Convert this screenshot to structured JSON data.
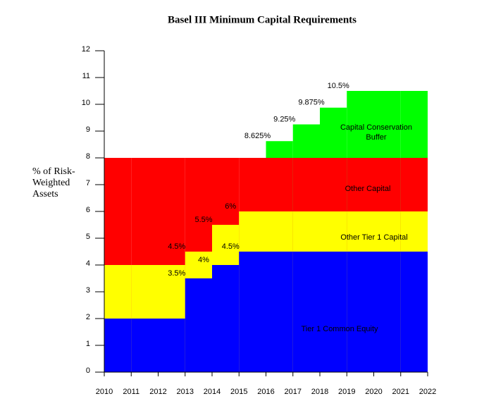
{
  "chart_data": {
    "type": "step-area",
    "title": "Basel III Minimum Capital Requirements",
    "y_label": "% of Risk-Weighted Assets",
    "x": [
      2010,
      2011,
      2012,
      2013,
      2014,
      2015,
      2016,
      2017,
      2018,
      2019,
      2020,
      2021
    ],
    "xlim": [
      2010,
      2022
    ],
    "xticks": [
      2010,
      2011,
      2012,
      2013,
      2014,
      2015,
      2016,
      2017,
      2018,
      2019,
      2020,
      2021,
      2022
    ],
    "ylim": [
      0,
      12
    ],
    "yticks": [
      0,
      1,
      2,
      3,
      4,
      5,
      6,
      7,
      8,
      9,
      10,
      11,
      12
    ],
    "stacked": false,
    "series": [
      {
        "name": "Capital Conservation Buffer",
        "color": "#00ff00",
        "values": [
          null,
          null,
          null,
          null,
          null,
          null,
          8.625,
          9.25,
          9.875,
          10.5,
          10.5,
          10.5
        ],
        "value_labels": [
          null,
          null,
          null,
          null,
          null,
          null,
          "8.625%",
          "9.25%",
          "9.875%",
          "10.5%",
          null,
          null
        ]
      },
      {
        "name": "Other Capital",
        "color": "#ff0000",
        "values": [
          8,
          8,
          8,
          8,
          8,
          8,
          8,
          8,
          8,
          8,
          8,
          8
        ]
      },
      {
        "name": "Other Tier 1 Capital",
        "color": "#ffff00",
        "values": [
          4,
          4,
          4,
          4.5,
          5.5,
          6,
          6,
          6,
          6,
          6,
          6,
          6
        ],
        "value_labels": [
          null,
          null,
          null,
          "4.5%",
          "5.5%",
          "6%",
          null,
          null,
          null,
          null,
          null,
          null
        ]
      },
      {
        "name": "Tier 1 Common Equity",
        "color": "#0000ff",
        "values": [
          2,
          2,
          2,
          3.5,
          4,
          4.5,
          4.5,
          4.5,
          4.5,
          4.5,
          4.5,
          4.5
        ],
        "value_labels": [
          null,
          null,
          null,
          "3.5%",
          "4%",
          "4.5%",
          null,
          null,
          null,
          null,
          null,
          null
        ]
      }
    ]
  }
}
